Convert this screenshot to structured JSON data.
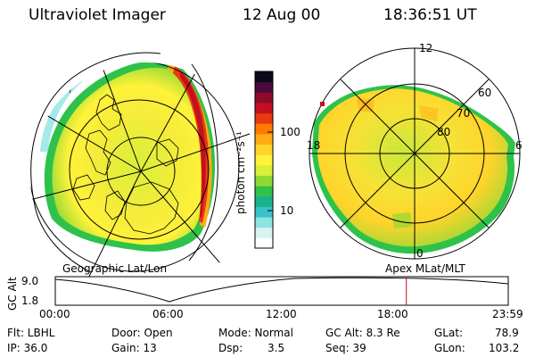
{
  "header": {
    "instrument": "Ultraviolet Imager",
    "date": "12 Aug 00",
    "time": "18:36:51 UT"
  },
  "colorbar": {
    "label": "photon cm⁻²s⁻¹",
    "tick_100": "100",
    "tick_10": "10",
    "colors": [
      "#ffffff",
      "#d9f2f2",
      "#8fe3e3",
      "#37c3c9",
      "#19b28c",
      "#2fc24a",
      "#8fd834",
      "#d9ef3a",
      "#fff23a",
      "#ffd42b",
      "#ffac14",
      "#ff7a00",
      "#e63a12",
      "#c40f1f",
      "#8e0b2a",
      "#4a0a3e",
      "#0a0a1c"
    ]
  },
  "left_map": {
    "caption": "Geographic Lat/Lon"
  },
  "right_map": {
    "caption": "Apex  MLat/MLT",
    "mlt_12": "12",
    "mlt_18": "18",
    "mlt_6": "6",
    "mlt_0": "0",
    "lat_60": "60",
    "lat_70": "70",
    "lat_80": "80"
  },
  "altitude_plot": {
    "ylabel": "GC Alt",
    "ymax": "9.0",
    "ymin": "1.8",
    "xticks": [
      "00:00",
      "06:00",
      "12:00",
      "18:00",
      "23:59"
    ],
    "current_time_fraction": 0.775
  },
  "status": {
    "flt": "Flt: LBHL",
    "ip": "IP: 36.0",
    "door": "Door: Open",
    "gain": "Gain: 13",
    "mode": "Mode: Normal",
    "dsp_label": "Dsp:",
    "dsp_value": "3.5",
    "gcalt": "GC Alt: 8.3 Re",
    "seq": "Seq: 39",
    "glat_label": "GLat:",
    "glat_value": "78.9",
    "glon_label": "GLon:",
    "glon_value": "103.2"
  }
}
